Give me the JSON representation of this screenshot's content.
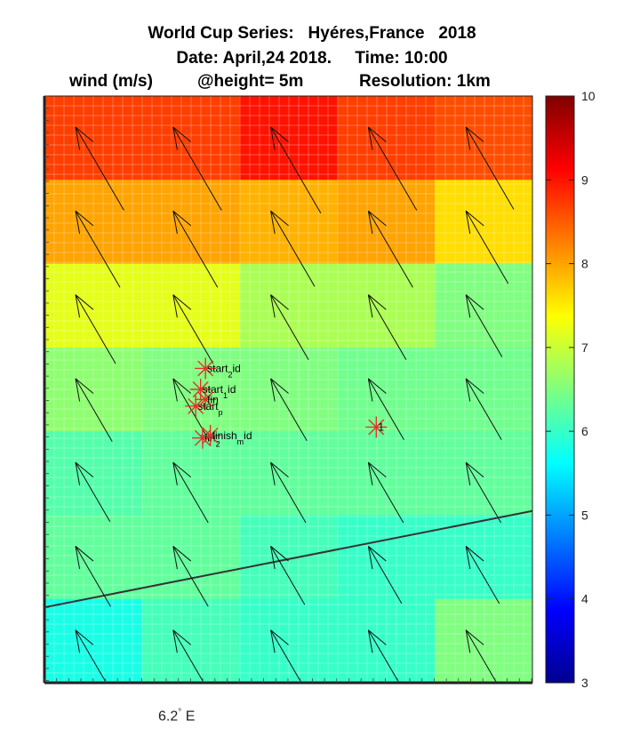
{
  "title": {
    "line1": "World Cup Series:   Hyéres,France   2018",
    "line2": "Date: April,24 2018.     Time: 10:00",
    "line3_a": "wind (m/s)",
    "line3_b": "@height= 5m",
    "line3_c": "Resolution: 1km"
  },
  "xtick_label": "6.2",
  "xtick_degree": "°",
  "xtick_suffix": " E",
  "chart_data": {
    "type": "heatmap",
    "colormap": "jet",
    "clim": [
      3,
      10
    ],
    "colorbar_ticks": [
      3,
      4,
      5,
      6,
      7,
      8,
      9,
      10
    ],
    "grid": [
      [
        8.7,
        8.7,
        9.0,
        8.7,
        8.6
      ],
      [
        8.0,
        8.0,
        7.9,
        8.0,
        7.6
      ],
      [
        7.2,
        7.2,
        6.8,
        6.8,
        6.5
      ],
      [
        6.6,
        6.5,
        6.5,
        6.4,
        6.4
      ],
      [
        6.2,
        6.3,
        6.3,
        6.3,
        6.3
      ],
      [
        6.3,
        6.3,
        6.1,
        6.0,
        6.0
      ],
      [
        5.8,
        6.1,
        6.0,
        6.0,
        6.5
      ]
    ],
    "wind_direction": "from south-east",
    "markers": [
      {
        "label": "start",
        "subscript": "2",
        "suffix": "id",
        "col": 1.65,
        "row": 3.25
      },
      {
        "label": "start",
        "subscript": "1",
        "suffix": "id",
        "col": 1.6,
        "row": 3.5
      },
      {
        "label": "start",
        "subscript": "p",
        "suffix": "",
        "col": 1.55,
        "row": 3.7
      },
      {
        "label": "fin",
        "subscript": "",
        "suffix": "",
        "col": 1.65,
        "row": 3.62
      },
      {
        "label": "fin",
        "subscript": "2",
        "suffix": "",
        "col": 1.62,
        "row": 4.08
      },
      {
        "label": "finish",
        "subscript": "m",
        "suffix": "id",
        "col": 1.7,
        "row": 4.05
      },
      {
        "label": "1",
        "subscript": "",
        "suffix": "",
        "col": 3.4,
        "row": 3.95
      }
    ],
    "coastline": [
      [
        0,
        6.1
      ],
      [
        5,
        4.95
      ]
    ]
  }
}
